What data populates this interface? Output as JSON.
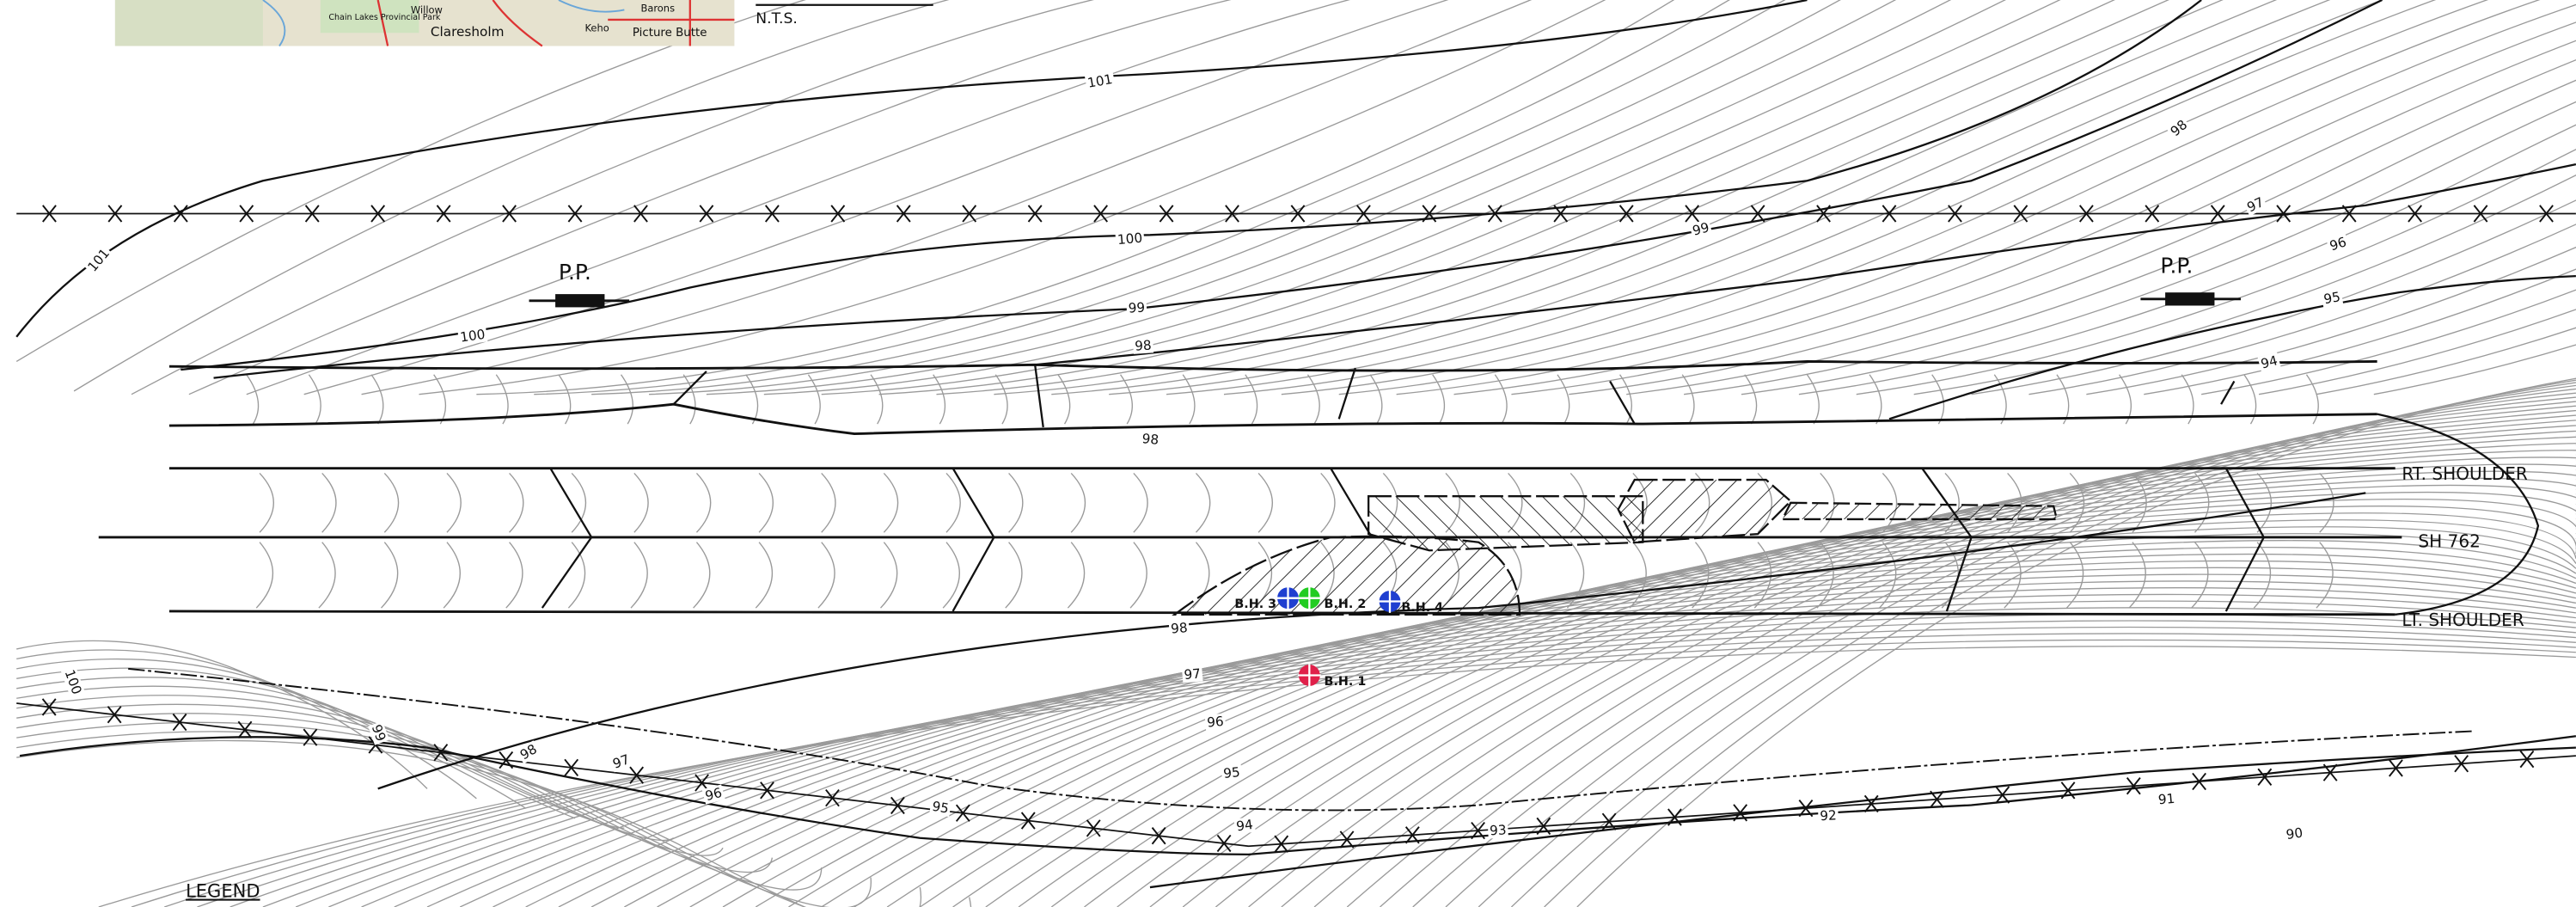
{
  "map_inset": {
    "labels": [
      "Claresholm",
      "Barons",
      "Picture Butte",
      "Chain Lakes Provincial Park",
      "Keho",
      "Willow"
    ]
  },
  "scale_note": "N.T.S.",
  "contour_labels": [
    "101",
    "101",
    "100",
    "100",
    "99",
    "99",
    "98",
    "98",
    "98",
    "97",
    "96",
    "95",
    "94",
    "98",
    "97",
    "96",
    "95",
    "94",
    "93",
    "92",
    "91",
    "90",
    "96",
    "97",
    "98",
    "99",
    "100",
    "95"
  ],
  "power_poles": [
    "P.P.",
    "P.P."
  ],
  "road_labels": {
    "rt_shoulder": "RT. SHOULDER",
    "centerline": "SH 762",
    "lt_shoulder": "LT. SHOULDER"
  },
  "boreholes": [
    {
      "label": "B.H. 1",
      "color": "#e0204a"
    },
    {
      "label": "B.H. 2",
      "color": "#22cc22"
    },
    {
      "label": "B.H. 3",
      "color": "#1f3fd0"
    },
    {
      "label": "B.H. 4",
      "color": "#1f3fd0"
    }
  ],
  "legend_title": "LEGEND"
}
